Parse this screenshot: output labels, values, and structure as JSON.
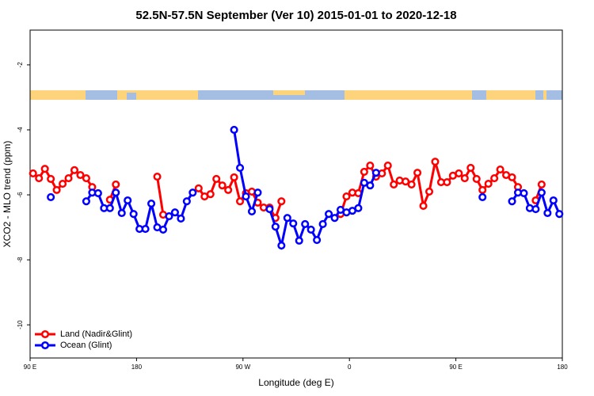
{
  "chart_data": {
    "type": "line",
    "title": "52.5N-57.5N September (Ver 10)   2015-01-01 to 2020-12-18",
    "xlabel": "Longitude (deg E)",
    "ylabel": "XCO2 - MLO trend (ppm)",
    "x": [
      92.5,
      97.5,
      102.5,
      107.5,
      112.5,
      117.5,
      122.5,
      127.5,
      132.5,
      137.5,
      142.5,
      147.5,
      152.5,
      157.5,
      162.5,
      167.5,
      172.5,
      177.5,
      182.5,
      187.5,
      192.5,
      197.5,
      202.5,
      207.5,
      212.5,
      217.5,
      222.5,
      227.5,
      232.5,
      237.5,
      242.5,
      247.5,
      252.5,
      257.5,
      262.5,
      267.5,
      272.5,
      277.5,
      282.5,
      287.5,
      292.5,
      297.5,
      302.5,
      307.5,
      312.5,
      317.5,
      322.5,
      327.5,
      332.5,
      337.5,
      342.5,
      347.5,
      352.5,
      357.5,
      362.5,
      367.5,
      372.5,
      377.5,
      382.5,
      387.5,
      392.5,
      397.5,
      402.5,
      407.5,
      412.5,
      417.5,
      422.5,
      427.5,
      432.5,
      437.5,
      442.5,
      447.5,
      452.5,
      457.5,
      462.5,
      467.5,
      472.5,
      477.5,
      482.5,
      487.5,
      492.5,
      497.5,
      502.5,
      507.5,
      512.5,
      517.5,
      522.5,
      527.5,
      532.5,
      537.5
    ],
    "series": [
      {
        "name": "Land (Nadir&Glint)",
        "color": "#ff0000",
        "values": [
          -5.34,
          -5.49,
          -5.2,
          -5.51,
          -5.85,
          -5.66,
          -5.49,
          -5.24,
          -5.39,
          -5.49,
          -5.76,
          null,
          null,
          -6.15,
          -5.68,
          null,
          null,
          null,
          null,
          null,
          null,
          -5.44,
          -6.61,
          null,
          null,
          null,
          null,
          null,
          -5.8,
          -6.05,
          -5.98,
          -5.51,
          -5.71,
          -5.85,
          -5.46,
          -6.2,
          -5.95,
          -5.9,
          -6.24,
          -6.39,
          -6.39,
          -6.71,
          -6.2,
          null,
          null,
          null,
          null,
          null,
          null,
          null,
          null,
          null,
          -6.59,
          -6.05,
          -5.93,
          -5.95,
          -5.29,
          -5.1,
          -5.44,
          -5.34,
          -5.1,
          -5.68,
          -5.56,
          -5.59,
          -5.68,
          -5.32,
          -6.34,
          -5.9,
          -4.98,
          -5.61,
          -5.61,
          -5.41,
          -5.34,
          -5.49,
          -5.17,
          -5.51,
          -5.85,
          -5.66,
          -5.49,
          -5.22,
          -5.39,
          -5.46,
          -5.76,
          null,
          null,
          -6.17,
          -5.68,
          null,
          null,
          null
        ]
      },
      {
        "name": "Ocean (Glint)",
        "color": "#0000ff",
        "values": [
          null,
          null,
          null,
          -6.07,
          null,
          null,
          null,
          null,
          null,
          -6.2,
          -5.93,
          -5.95,
          -6.41,
          -6.41,
          -5.93,
          -6.56,
          -6.17,
          -6.59,
          -7.05,
          -7.05,
          -6.27,
          -7.0,
          -7.07,
          -6.66,
          -6.54,
          -6.73,
          -6.2,
          -5.93,
          null,
          null,
          null,
          null,
          null,
          null,
          -4.0,
          -5.17,
          -6.05,
          -6.51,
          -5.93,
          null,
          -6.44,
          -6.98,
          -7.56,
          -6.71,
          -6.88,
          -7.41,
          -6.9,
          -7.07,
          -7.39,
          -6.9,
          -6.59,
          -6.71,
          -6.46,
          -6.54,
          -6.49,
          -6.41,
          -5.63,
          -5.71,
          -5.32,
          null,
          null,
          null,
          null,
          null,
          null,
          null,
          null,
          null,
          null,
          null,
          null,
          null,
          null,
          null,
          null,
          null,
          -6.07,
          null,
          null,
          null,
          null,
          -6.2,
          -5.93,
          -5.95,
          -6.41,
          -6.44,
          -5.93,
          -6.56,
          -6.17,
          -6.59
        ]
      }
    ],
    "xlim": [
      90,
      540
    ],
    "xticks": [
      {
        "value": 90,
        "label": "90 E"
      },
      180,
      {
        "value": 270,
        "label": "90 W"
      },
      {
        "value": 360,
        "label": "0"
      },
      {
        "value": 450,
        "label": "90 E"
      },
      {
        "value": 540,
        "label": "180"
      }
    ],
    "ylim": [
      -11.02,
      -0.93
    ],
    "yticks": [
      -2,
      -4,
      -6,
      -8,
      -10
    ],
    "legend": "lower left"
  }
}
